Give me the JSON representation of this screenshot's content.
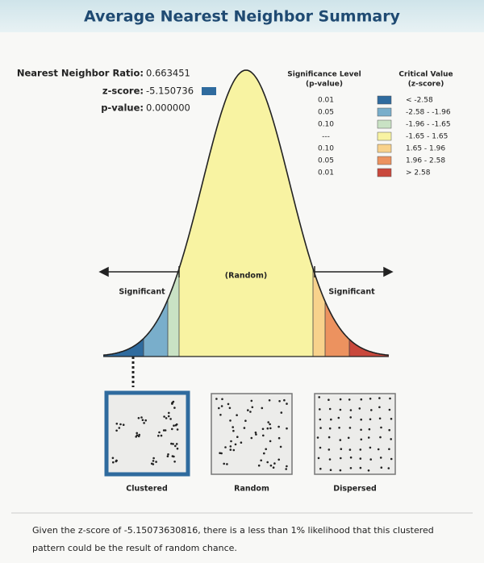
{
  "title": "Average Nearest Neighbor Summary",
  "stats": [
    {
      "label": "Nearest Neighbor Ratio:",
      "value": "0.663451"
    },
    {
      "label": "z-score:",
      "value": "-5.150736"
    },
    {
      "label": "p-value:",
      "value": "0.000000"
    }
  ],
  "legend": {
    "p_header": [
      "Significance Level",
      "(p-value)"
    ],
    "z_header": [
      "Critical Value",
      "(z-score)"
    ],
    "rows": [
      {
        "p": "0.01",
        "range": "< -2.58",
        "color": "#2f6b9e"
      },
      {
        "p": "0.05",
        "range": "-2.58 - -1.96",
        "color": "#79aecb"
      },
      {
        "p": "0.10",
        "range": "-1.96 - -1.65",
        "color": "#c9e2c4"
      },
      {
        "p": "---",
        "range": "-1.65 - 1.65",
        "color": "#f8f3a2"
      },
      {
        "p": "0.10",
        "range": "1.65 - 1.96",
        "color": "#f8d28c"
      },
      {
        "p": "0.05",
        "range": "1.96 - 2.58",
        "color": "#ec925f"
      },
      {
        "p": "0.01",
        "range": "> 2.58",
        "color": "#c9483c"
      }
    ]
  },
  "curve_labels": {
    "center": "(Random)",
    "left": "Significant",
    "right": "Significant"
  },
  "patterns": [
    "Clustered",
    "Random",
    "Dispersed"
  ],
  "footer": [
    "Given the z-score of -5.15073630816, there is a less than 1% likelihood that this clustered",
    "pattern could be the result of random chance."
  ]
}
